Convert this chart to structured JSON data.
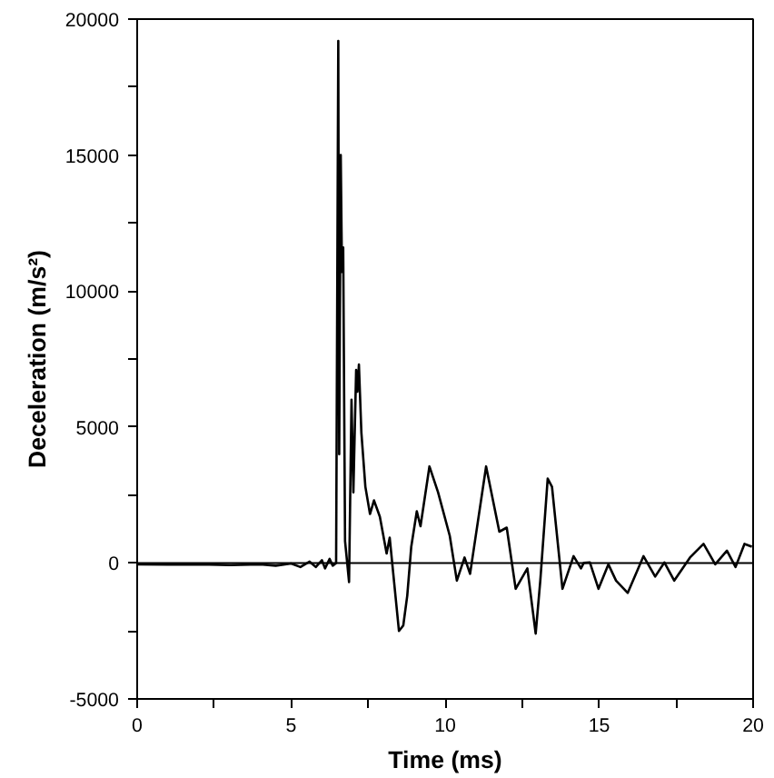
{
  "chart_data": {
    "type": "line",
    "xlabel": "Time (ms)",
    "ylabel": "Deceleration (m/s²)",
    "x": [
      0,
      1,
      2,
      3,
      4,
      4.5,
      5,
      5.3,
      5.6,
      5.8,
      6.0,
      6.1,
      6.25,
      6.35,
      6.46,
      6.53,
      6.56,
      6.61,
      6.65,
      6.69,
      6.75,
      6.88,
      6.96,
      7.02,
      7.11,
      7.15,
      7.2,
      7.28,
      7.41,
      7.56,
      7.69,
      7.88,
      8.1,
      8.2,
      8.5,
      8.64,
      8.77,
      8.9,
      9.08,
      9.2,
      9.49,
      9.77,
      10.15,
      10.38,
      10.63,
      10.81,
      11.33,
      11.76,
      12.0,
      12.29,
      12.67,
      12.94,
      13.09,
      13.33,
      13.47,
      13.81,
      14.17,
      14.41,
      14.5,
      14.7,
      14.98,
      15.3,
      15.55,
      15.93,
      16.44,
      16.82,
      17.12,
      17.44,
      17.95,
      18.39,
      18.77,
      19.15,
      19.43,
      19.72,
      19.96
    ],
    "series": [
      {
        "color": "#000000",
        "values": [
          -50,
          -60,
          -50,
          -80,
          -50,
          -100,
          -20,
          -150,
          50,
          -150,
          100,
          -200,
          150,
          -100,
          0,
          19200,
          4000,
          15000,
          10700,
          11600,
          800,
          -700,
          6000,
          2600,
          7100,
          6300,
          7300,
          4800,
          2800,
          1800,
          2300,
          1700,
          350,
          930,
          -2500,
          -2300,
          -1200,
          600,
          1900,
          1350,
          3550,
          2600,
          1000,
          -650,
          200,
          -400,
          3550,
          1150,
          1300,
          -950,
          -200,
          -2600,
          -650,
          3100,
          2800,
          -950,
          250,
          -200,
          0,
          20,
          -950,
          -50,
          -650,
          -1100,
          250,
          -500,
          20,
          -650,
          200,
          700,
          -50,
          450,
          -150,
          700,
          600
        ]
      }
    ],
    "xlim": [
      0,
      20
    ],
    "xticks": [
      0,
      {
        "value": 2.5,
        "label": null
      },
      5,
      {
        "value": 7.5,
        "label": null
      },
      10,
      {
        "value": 12.5,
        "label": null
      },
      15,
      {
        "value": 17.5,
        "label": null
      },
      20
    ],
    "ylim": [
      -5000,
      20000
    ],
    "yticks": [
      -5000,
      {
        "value": -2500,
        "label": null
      },
      0,
      {
        "value": 2500,
        "label": null
      },
      5000,
      {
        "value": 7500,
        "label": null
      },
      10000,
      {
        "value": 12500,
        "label": null
      },
      15000,
      {
        "value": 17500,
        "label": null
      },
      20000
    ],
    "ref_lines": [
      {
        "axis": "y",
        "value": 0,
        "color": "#000000"
      }
    ],
    "grid": false,
    "marker": "none",
    "line_style": "solid"
  }
}
